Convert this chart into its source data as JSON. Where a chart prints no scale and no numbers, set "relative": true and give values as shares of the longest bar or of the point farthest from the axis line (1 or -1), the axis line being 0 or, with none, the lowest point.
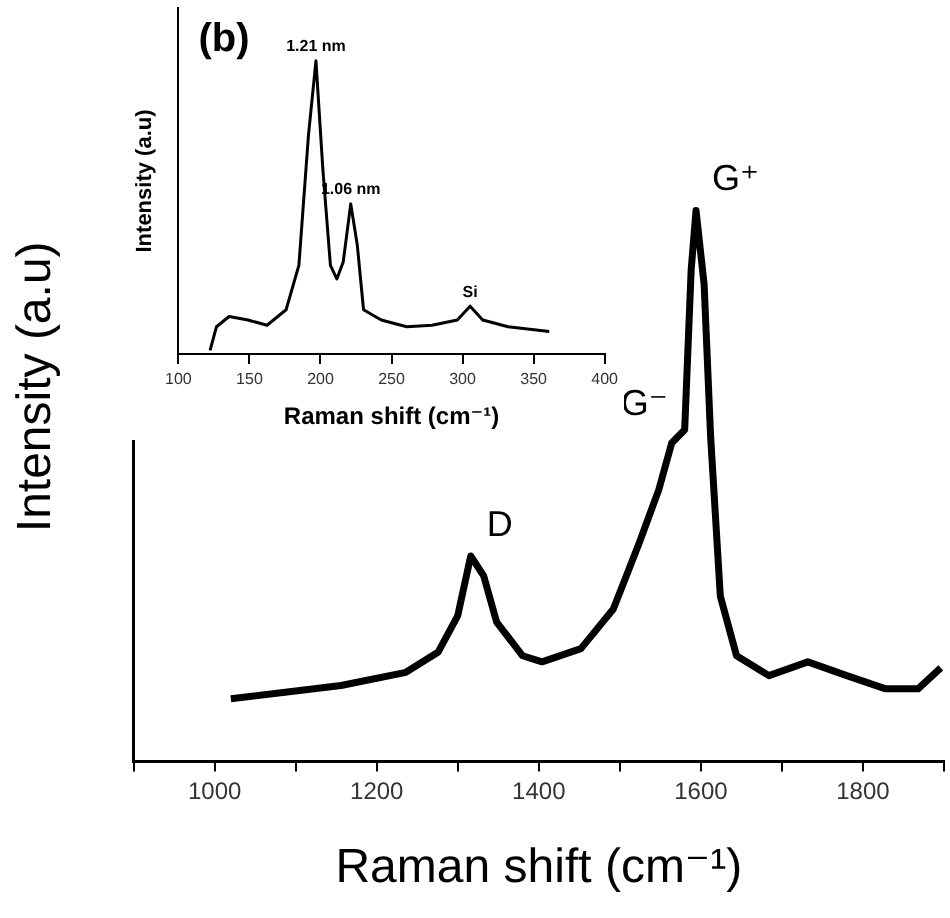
{
  "chart_data": [
    {
      "type": "line",
      "xlabel": "Raman shift (cm⁻¹)",
      "ylabel": "Intensity (a.u)",
      "relative": true,
      "xlim": [
        900,
        1900
      ],
      "xticks": [
        {
          "value": 900,
          "label": null
        },
        1000,
        {
          "value": 1100,
          "label": null
        },
        1200,
        {
          "value": 1300,
          "label": null
        },
        1400,
        {
          "value": 1500,
          "label": null
        },
        1600,
        {
          "value": 1700,
          "label": null
        },
        1800,
        {
          "value": 1900,
          "label": null
        }
      ],
      "grid": false,
      "legend": false,
      "marker": "none",
      "line_style": "solid",
      "series": [
        {
          "color": "#000000",
          "x": [
            1020,
            1156,
            1236,
            1276,
            1300,
            1316,
            1332,
            1348,
            1380,
            1404,
            1452,
            1492,
            1524,
            1548,
            1564,
            1580,
            1588,
            1594,
            1604,
            1612,
            1624,
            1644,
            1684,
            1732,
            1780,
            1828,
            1868,
            1896
          ],
          "values": [
            0.114,
            0.138,
            0.162,
            0.199,
            0.265,
            0.373,
            0.337,
            0.253,
            0.192,
            0.181,
            0.205,
            0.277,
            0.397,
            0.493,
            0.578,
            0.602,
            0.892,
            1.0,
            0.866,
            0.59,
            0.3,
            0.192,
            0.156,
            0.181,
            0.156,
            0.132,
            0.132,
            0.17
          ]
        }
      ],
      "annotations": [
        {
          "text": "D",
          "x": 1316,
          "y": 0.373
        },
        {
          "text": "G⁻",
          "x": 1564,
          "y": 0.578
        },
        {
          "text": "G⁺",
          "x": 1594,
          "y": 1.0
        }
      ]
    },
    {
      "type": "line",
      "title": "(b)",
      "xlabel": "Raman shift (cm⁻¹)",
      "ylabel": "Intensity (a.u)",
      "relative": true,
      "xlim": [
        100,
        400
      ],
      "xticks": [
        100,
        150,
        200,
        250,
        300,
        350,
        400
      ],
      "grid": false,
      "legend": false,
      "marker": "none",
      "line_style": "solid",
      "series": [
        {
          "color": "#000000",
          "x": [
            122.3,
            126.8,
            135.7,
            149,
            162.4,
            175.8,
            184.8,
            191.5,
            196.8,
            201.7,
            207,
            211.5,
            216,
            221.3,
            225.9,
            230.3,
            242.8,
            260.7,
            278.5,
            296.3,
            305.3,
            314.2,
            332,
            361
          ],
          "values": [
            0.012,
            0.093,
            0.128,
            0.116,
            0.098,
            0.151,
            0.302,
            0.744,
            1.0,
            0.628,
            0.302,
            0.256,
            0.314,
            0.512,
            0.372,
            0.151,
            0.116,
            0.093,
            0.098,
            0.116,
            0.163,
            0.116,
            0.093,
            0.077
          ]
        }
      ],
      "annotations": [
        {
          "text": "1.21 nm",
          "x": 196.8,
          "y": 1.0
        },
        {
          "text": "1.06 nm",
          "x": 221.3,
          "y": 0.512
        },
        {
          "text": "Si",
          "x": 305.3,
          "y": 0.163
        }
      ]
    }
  ]
}
